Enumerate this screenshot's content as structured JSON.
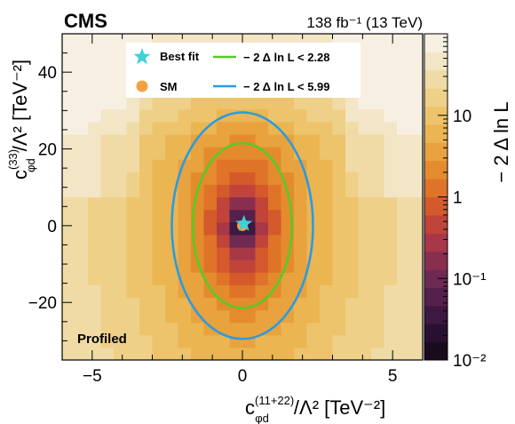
{
  "chart_data": {
    "type": "heatmap",
    "experiment_label": "CMS",
    "luminosity_label": "138 fb⁻¹ (13 TeV)",
    "annotation": "Profiled",
    "x_axis": {
      "label_prefix": "c",
      "label_sub": "φd",
      "label_sup": "(11+22)",
      "label_suffix": "/Λ² [TeV⁻²]",
      "range": [
        -6,
        6
      ],
      "ticks": [
        -5,
        0,
        5
      ],
      "tick_labels": [
        "−5",
        "0",
        "5"
      ]
    },
    "y_axis": {
      "label_prefix": "c",
      "label_sub": "φd",
      "label_sup": "(33)",
      "label_suffix": "/Λ² [TeV⁻²]",
      "range": [
        -35,
        50
      ],
      "ticks": [
        -20,
        0,
        20,
        40
      ],
      "tick_labels": [
        "−20",
        "0",
        "20",
        "40"
      ]
    },
    "z_axis": {
      "label": "− 2 Δ ln L",
      "scale": "log",
      "range": [
        0.01,
        100
      ],
      "ticks": [
        0.01,
        0.1,
        1,
        10
      ],
      "tick_labels": [
        "10⁻²",
        "10⁻¹",
        "1",
        "10"
      ]
    },
    "best_fit": {
      "name": "Best fit",
      "x": 0.05,
      "y": 0.5,
      "color": "#40d0d8"
    },
    "sm_point": {
      "name": "SM",
      "x": 0,
      "y": 0,
      "color": "#f5a040"
    },
    "contours": [
      {
        "name": "− 2 Δ ln L < 2.28",
        "color": "#55cc22",
        "center": [
          0,
          0
        ],
        "semi_x": 1.65,
        "semi_y": 21.5
      },
      {
        "name": "− 2 Δ ln L < 5.99",
        "color": "#2a9be0",
        "center": [
          0,
          0
        ],
        "semi_x": 2.35,
        "semi_y": 29.5
      }
    ],
    "legend_placement": "top-center",
    "grid": false
  }
}
